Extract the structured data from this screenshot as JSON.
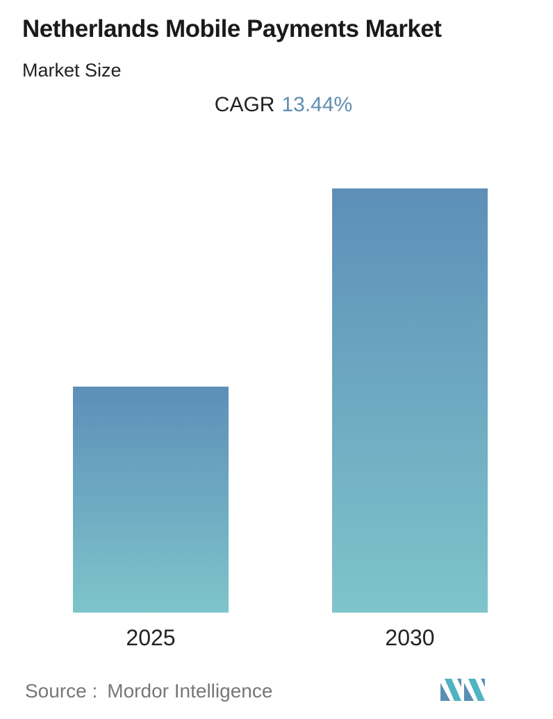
{
  "header": {
    "title": "Netherlands Mobile Payments Market",
    "subtitle": "Market Size",
    "cagr_label": "CAGR",
    "cagr_value": "13.44%"
  },
  "chart_data": {
    "type": "bar",
    "categories": [
      "2025",
      "2030"
    ],
    "values": [
      1.0,
      1.877
    ],
    "value_note": "relative heights; no value axis printed",
    "colors": {
      "bar_top": "#5d8fb8",
      "bar_bottom": "#7ec4cb",
      "cagr_value": "#5f8fb0"
    },
    "grid": false,
    "legend": "none"
  },
  "footer": {
    "source_label": "Source :",
    "source_name": "Mordor Intelligence",
    "logo_icon": "mordor-intelligence-logo-icon"
  }
}
